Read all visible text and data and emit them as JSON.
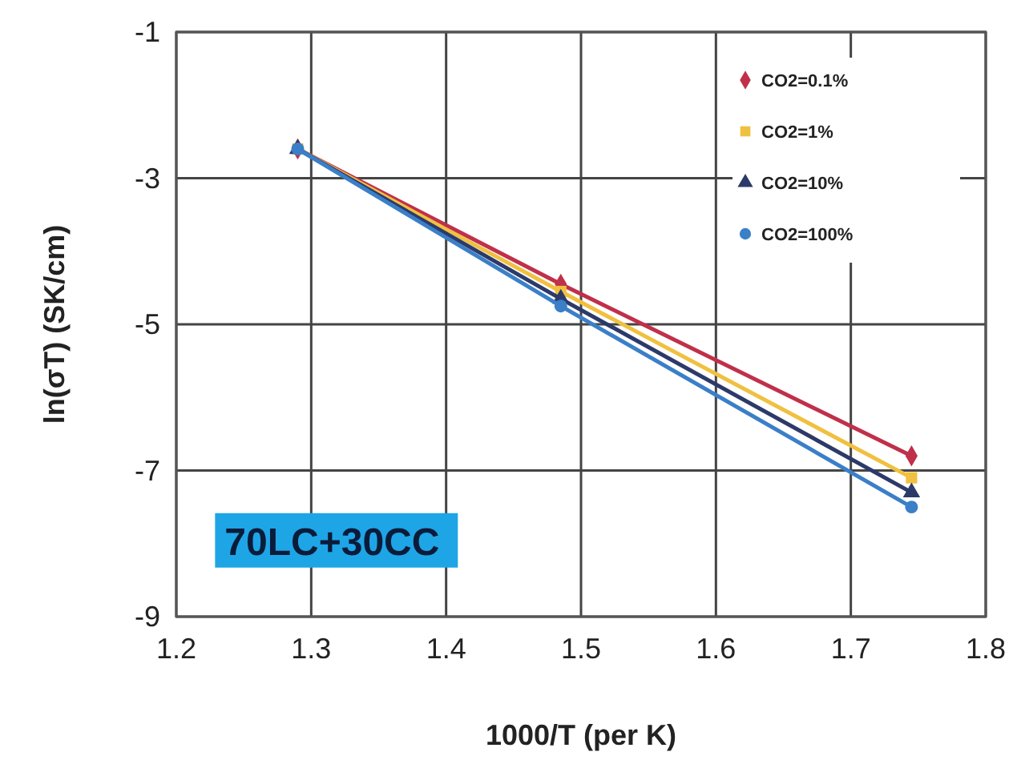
{
  "chart_data": {
    "type": "line",
    "xlabel": "1000/T  (per K)",
    "ylabel": "ln(σT) (SK/cm)",
    "xlim": [
      1.2,
      1.8
    ],
    "xticks": [
      {
        "value": 1.2,
        "label": "1.2"
      },
      {
        "value": 1.3,
        "label": "1.3"
      },
      {
        "value": 1.4,
        "label": "1.4"
      },
      {
        "value": 1.5,
        "label": "1.5"
      },
      {
        "value": 1.6,
        "label": "1.6"
      },
      {
        "value": 1.7,
        "label": "1.7"
      },
      {
        "value": 1.8,
        "label": "1.8"
      }
    ],
    "ylim": [
      -9,
      -1
    ],
    "yticks": [
      -9,
      -7,
      -5,
      -3,
      -1
    ],
    "grid": true,
    "legend": "top right",
    "x": [
      1.29,
      1.485,
      1.745
    ],
    "series": [
      {
        "name": "CO2=0.1%",
        "color": "#c0304a",
        "marker": "diamond",
        "values": [
          -2.6,
          -4.45,
          -6.8
        ]
      },
      {
        "name": "CO2=1%",
        "color": "#f0c040",
        "marker": "square",
        "values": [
          -2.6,
          -4.55,
          -7.1
        ]
      },
      {
        "name": "CO2=10%",
        "color": "#2c3a6a",
        "marker": "triangle",
        "values": [
          -2.6,
          -4.65,
          -7.3
        ]
      },
      {
        "name": "CO2=100%",
        "color": "#3a7fc8",
        "marker": "circle",
        "values": [
          -2.6,
          -4.75,
          -7.5
        ]
      }
    ],
    "annotations": [
      "70LC+30CC"
    ]
  }
}
